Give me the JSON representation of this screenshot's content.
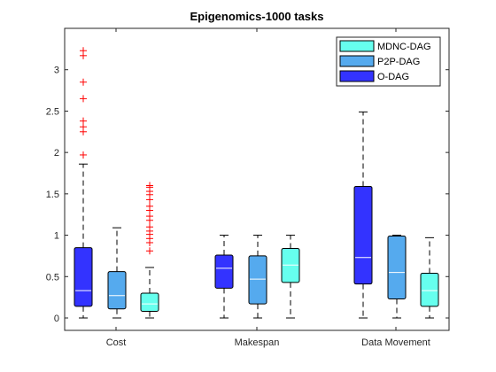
{
  "chart_data": {
    "type": "boxplot",
    "title": "Epigenomics-1000 tasks",
    "xlabel": "",
    "ylabel": "",
    "ylim": [
      -0.15,
      3.5
    ],
    "yticks": [
      0,
      0.5,
      1,
      1.5,
      2,
      2.5,
      3
    ],
    "ytick_labels": [
      "0",
      "0.5",
      "1",
      "1.5",
      "2",
      "2.5",
      "3"
    ],
    "categories": [
      "Cost",
      "Makespan",
      "Data Movement"
    ],
    "grid": false,
    "legend_position": "top-right",
    "series": [
      {
        "name": "O-DAG",
        "color": "#3333ff",
        "boxes": [
          {
            "category": "Cost",
            "whisker_low": 0,
            "q1": 0.14,
            "median": 0.33,
            "q3": 0.85,
            "whisker_high": 1.86,
            "outliers": [
              1.97,
              2.25,
              2.31,
              2.38,
              2.65,
              2.85,
              3.17,
              3.23
            ]
          },
          {
            "category": "Makespan",
            "whisker_low": 0,
            "q1": 0.36,
            "median": 0.6,
            "q3": 0.76,
            "whisker_high": 1.0,
            "outliers": []
          },
          {
            "category": "Data Movement",
            "whisker_low": 0,
            "q1": 0.41,
            "median": 0.73,
            "q3": 1.59,
            "whisker_high": 2.49,
            "outliers": []
          }
        ]
      },
      {
        "name": "P2P-DAG",
        "color": "#55aaee",
        "boxes": [
          {
            "category": "Cost",
            "whisker_low": 0,
            "q1": 0.11,
            "median": 0.27,
            "q3": 0.56,
            "whisker_high": 1.09,
            "outliers": []
          },
          {
            "category": "Makespan",
            "whisker_low": 0,
            "q1": 0.17,
            "median": 0.47,
            "q3": 0.75,
            "whisker_high": 1.0,
            "outliers": []
          },
          {
            "category": "Data Movement",
            "whisker_low": 0,
            "q1": 0.23,
            "median": 0.55,
            "q3": 0.99,
            "whisker_high": 1.0,
            "outliers": []
          }
        ]
      },
      {
        "name": "MDNC-DAG",
        "color": "#66ffee",
        "boxes": [
          {
            "category": "Cost",
            "whisker_low": 0,
            "q1": 0.08,
            "median": 0.17,
            "q3": 0.3,
            "whisker_high": 0.61,
            "outliers": [
              0.81,
              0.91,
              0.96,
              1.01,
              1.05,
              1.1,
              1.18,
              1.23,
              1.3,
              1.35,
              1.43,
              1.49,
              1.53,
              1.58,
              1.6
            ]
          },
          {
            "category": "Makespan",
            "whisker_low": 0,
            "q1": 0.43,
            "median": 0.64,
            "q3": 0.84,
            "whisker_high": 1.0,
            "outliers": []
          },
          {
            "category": "Data Movement",
            "whisker_low": 0,
            "q1": 0.14,
            "median": 0.33,
            "q3": 0.54,
            "whisker_high": 0.97,
            "outliers": []
          }
        ]
      }
    ],
    "legend": [
      {
        "label": "MDNC-DAG",
        "color": "#66ffee"
      },
      {
        "label": "P2P-DAG",
        "color": "#55aaee"
      },
      {
        "label": "O-DAG",
        "color": "#3333ff"
      }
    ],
    "outlier_color": "#ff0000",
    "median_color": "#ffffff"
  }
}
